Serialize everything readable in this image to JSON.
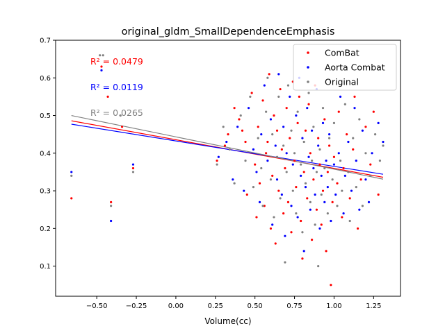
{
  "chart_data": {
    "type": "scatter",
    "title": "original_gldm_SmallDependenceEmphasis",
    "xlabel": "Volume(cc)",
    "ylabel": "",
    "xlim": [
      -0.76,
      1.42
    ],
    "ylim": [
      0.02,
      0.7
    ],
    "x_ticks": [
      -0.5,
      -0.25,
      0.0,
      0.25,
      0.5,
      0.75,
      1.0,
      1.25
    ],
    "x_tick_labels": [
      "−0.50",
      "−0.25",
      "0.00",
      "0.25",
      "0.50",
      "0.75",
      "1.00",
      "1.25"
    ],
    "y_ticks": [
      0.1,
      0.2,
      0.3,
      0.4,
      0.5,
      0.6,
      0.7
    ],
    "y_tick_labels": [
      "0.1",
      "0.2",
      "0.3",
      "0.4",
      "0.5",
      "0.6",
      "0.7"
    ],
    "grid": false,
    "legend_position": "top-right",
    "series": [
      {
        "name": "ComBat",
        "color": "#ff0000",
        "r2_label": "R² = 0.0479",
        "fit": {
          "x": [
            -0.66,
            1.31
          ],
          "y": [
            0.486,
            0.336
          ]
        },
        "points": [
          [
            -0.66,
            0.28
          ],
          [
            -0.47,
            0.63
          ],
          [
            -0.43,
            0.55
          ],
          [
            -0.41,
            0.27
          ],
          [
            -0.34,
            0.47
          ],
          [
            -0.27,
            0.36
          ],
          [
            0.26,
            0.38
          ],
          [
            0.31,
            0.42
          ],
          [
            0.33,
            0.45
          ],
          [
            0.37,
            0.52
          ],
          [
            0.4,
            0.49
          ],
          [
            0.42,
            0.46
          ],
          [
            0.44,
            0.43
          ],
          [
            0.45,
            0.29
          ],
          [
            0.48,
            0.56
          ],
          [
            0.5,
            0.37
          ],
          [
            0.51,
            0.23
          ],
          [
            0.52,
            0.47
          ],
          [
            0.53,
            0.32
          ],
          [
            0.55,
            0.54
          ],
          [
            0.56,
            0.26
          ],
          [
            0.57,
            0.4
          ],
          [
            0.58,
            0.43
          ],
          [
            0.59,
            0.61
          ],
          [
            0.6,
            0.2
          ],
          [
            0.61,
            0.34
          ],
          [
            0.62,
            0.5
          ],
          [
            0.63,
            0.16
          ],
          [
            0.64,
            0.46
          ],
          [
            0.65,
            0.3
          ],
          [
            0.66,
            0.57
          ],
          [
            0.67,
            0.41
          ],
          [
            0.68,
            0.24
          ],
          [
            0.69,
            0.36
          ],
          [
            0.7,
            0.52
          ],
          [
            0.71,
            0.27
          ],
          [
            0.72,
            0.44
          ],
          [
            0.73,
            0.19
          ],
          [
            0.74,
            0.59
          ],
          [
            0.75,
            0.38
          ],
          [
            0.76,
            0.31
          ],
          [
            0.77,
            0.48
          ],
          [
            0.78,
            0.55
          ],
          [
            0.79,
            0.22
          ],
          [
            0.8,
            0.12
          ],
          [
            0.81,
            0.35
          ],
          [
            0.82,
            0.46
          ],
          [
            0.83,
            0.28
          ],
          [
            0.84,
            0.53
          ],
          [
            0.85,
            0.4
          ],
          [
            0.86,
            0.17
          ],
          [
            0.87,
            0.33
          ],
          [
            0.88,
            0.58
          ],
          [
            0.89,
            0.25
          ],
          [
            0.9,
            0.44
          ],
          [
            0.91,
            0.37
          ],
          [
            0.92,
            0.21
          ],
          [
            0.93,
            0.3
          ],
          [
            0.94,
            0.49
          ],
          [
            0.95,
            0.14
          ],
          [
            0.96,
            0.35
          ],
          [
            0.97,
            0.42
          ],
          [
            0.98,
            0.05
          ],
          [
            0.99,
            0.27
          ],
          [
            1.0,
            0.39
          ],
          [
            1.02,
            0.32
          ],
          [
            1.03,
            0.51
          ],
          [
            1.05,
            0.23
          ],
          [
            1.06,
            0.36
          ],
          [
            1.08,
            0.45
          ],
          [
            1.1,
            0.28
          ],
          [
            1.12,
            0.41
          ],
          [
            1.13,
            0.55
          ],
          [
            1.15,
            0.2
          ],
          [
            1.17,
            0.33
          ],
          [
            1.2,
            0.47
          ],
          [
            1.23,
            0.37
          ],
          [
            1.25,
            0.51
          ],
          [
            1.28,
            0.29
          ]
        ]
      },
      {
        "name": "Aorta Combat",
        "color": "#0000ff",
        "r2_label": "R² = 0.0119",
        "fit": {
          "x": [
            -0.66,
            1.31
          ],
          "y": [
            0.477,
            0.344
          ]
        },
        "points": [
          [
            -0.66,
            0.35
          ],
          [
            -0.47,
            0.62
          ],
          [
            -0.41,
            0.22
          ],
          [
            -0.27,
            0.37
          ],
          [
            0.27,
            0.39
          ],
          [
            0.32,
            0.43
          ],
          [
            0.36,
            0.33
          ],
          [
            0.39,
            0.47
          ],
          [
            0.43,
            0.3
          ],
          [
            0.46,
            0.52
          ],
          [
            0.49,
            0.41
          ],
          [
            0.51,
            0.35
          ],
          [
            0.53,
            0.27
          ],
          [
            0.54,
            0.45
          ],
          [
            0.56,
            0.58
          ],
          [
            0.58,
            0.38
          ],
          [
            0.6,
            0.49
          ],
          [
            0.61,
            0.21
          ],
          [
            0.63,
            0.42
          ],
          [
            0.64,
            0.33
          ],
          [
            0.65,
            0.61
          ],
          [
            0.67,
            0.29
          ],
          [
            0.68,
            0.47
          ],
          [
            0.69,
            0.18
          ],
          [
            0.7,
            0.4
          ],
          [
            0.72,
            0.55
          ],
          [
            0.73,
            0.26
          ],
          [
            0.74,
            0.37
          ],
          [
            0.76,
            0.5
          ],
          [
            0.77,
            0.23
          ],
          [
            0.78,
            0.6
          ],
          [
            0.79,
            0.34
          ],
          [
            0.8,
            0.44
          ],
          [
            0.81,
            0.14
          ],
          [
            0.82,
            0.31
          ],
          [
            0.83,
            0.52
          ],
          [
            0.84,
            0.39
          ],
          [
            0.85,
            0.25
          ],
          [
            0.86,
            0.46
          ],
          [
            0.87,
            0.36
          ],
          [
            0.88,
            0.29
          ],
          [
            0.89,
            0.57
          ],
          [
            0.9,
            0.42
          ],
          [
            0.91,
            0.2
          ],
          [
            0.92,
            0.34
          ],
          [
            0.93,
            0.48
          ],
          [
            0.94,
            0.27
          ],
          [
            0.95,
            0.38
          ],
          [
            0.96,
            0.31
          ],
          [
            0.97,
            0.45
          ],
          [
            0.98,
            0.22
          ],
          [
            1.0,
            0.37
          ],
          [
            1.01,
            0.29
          ],
          [
            1.03,
            0.4
          ],
          [
            1.04,
            0.55
          ],
          [
            1.06,
            0.24
          ],
          [
            1.07,
            0.34
          ],
          [
            1.09,
            0.43
          ],
          [
            1.11,
            0.3
          ],
          [
            1.13,
            0.52
          ],
          [
            1.14,
            0.38
          ],
          [
            1.16,
            0.25
          ],
          [
            1.18,
            0.46
          ],
          [
            1.2,
            0.33
          ],
          [
            1.22,
            0.27
          ],
          [
            1.24,
            0.4
          ],
          [
            1.28,
            0.48
          ],
          [
            1.31,
            0.43
          ]
        ]
      },
      {
        "name": "Original",
        "color": "#808080",
        "r2_label": "R² = 0.0265",
        "fit": {
          "x": [
            -0.66,
            1.31
          ],
          "y": [
            0.5,
            0.331
          ]
        },
        "points": [
          [
            -0.66,
            0.34
          ],
          [
            -0.48,
            0.66
          ],
          [
            -0.46,
            0.66
          ],
          [
            -0.41,
            0.26
          ],
          [
            -0.35,
            0.5
          ],
          [
            -0.27,
            0.35
          ],
          [
            0.26,
            0.37
          ],
          [
            0.3,
            0.47
          ],
          [
            0.34,
            0.41
          ],
          [
            0.37,
            0.32
          ],
          [
            0.41,
            0.5
          ],
          [
            0.44,
            0.38
          ],
          [
            0.47,
            0.55
          ],
          [
            0.49,
            0.31
          ],
          [
            0.52,
            0.44
          ],
          [
            0.54,
            0.36
          ],
          [
            0.55,
            0.26
          ],
          [
            0.57,
            0.51
          ],
          [
            0.58,
            0.6
          ],
          [
            0.6,
            0.33
          ],
          [
            0.61,
            0.45
          ],
          [
            0.62,
            0.23
          ],
          [
            0.64,
            0.39
          ],
          [
            0.65,
            0.55
          ],
          [
            0.66,
            0.28
          ],
          [
            0.68,
            0.42
          ],
          [
            0.69,
            0.11
          ],
          [
            0.7,
            0.35
          ],
          [
            0.71,
            0.58
          ],
          [
            0.73,
            0.46
          ],
          [
            0.74,
            0.3
          ],
          [
            0.75,
            0.4
          ],
          [
            0.76,
            0.24
          ],
          [
            0.77,
            0.51
          ],
          [
            0.79,
            0.37
          ],
          [
            0.8,
            0.19
          ],
          [
            0.81,
            0.43
          ],
          [
            0.82,
            0.32
          ],
          [
            0.84,
            0.56
          ],
          [
            0.85,
            0.27
          ],
          [
            0.86,
            0.38
          ],
          [
            0.87,
            0.47
          ],
          [
            0.88,
            0.21
          ],
          [
            0.89,
            0.35
          ],
          [
            0.9,
            0.1
          ],
          [
            0.91,
            0.41
          ],
          [
            0.92,
            0.29
          ],
          [
            0.93,
            0.52
          ],
          [
            0.94,
            0.36
          ],
          [
            0.96,
            0.24
          ],
          [
            0.97,
            0.44
          ],
          [
            0.99,
            0.33
          ],
          [
            1.0,
            0.48
          ],
          [
            1.02,
            0.26
          ],
          [
            1.04,
            0.38
          ],
          [
            1.05,
            0.3
          ],
          [
            1.07,
            0.53
          ],
          [
            1.09,
            0.35
          ],
          [
            1.1,
            0.22
          ],
          [
            1.12,
            0.44
          ],
          [
            1.14,
            0.31
          ],
          [
            1.16,
            0.49
          ],
          [
            1.18,
            0.26
          ],
          [
            1.2,
            0.4
          ],
          [
            1.23,
            0.34
          ],
          [
            1.26,
            0.45
          ],
          [
            1.29,
            0.38
          ],
          [
            1.31,
            0.42
          ]
        ]
      }
    ]
  }
}
